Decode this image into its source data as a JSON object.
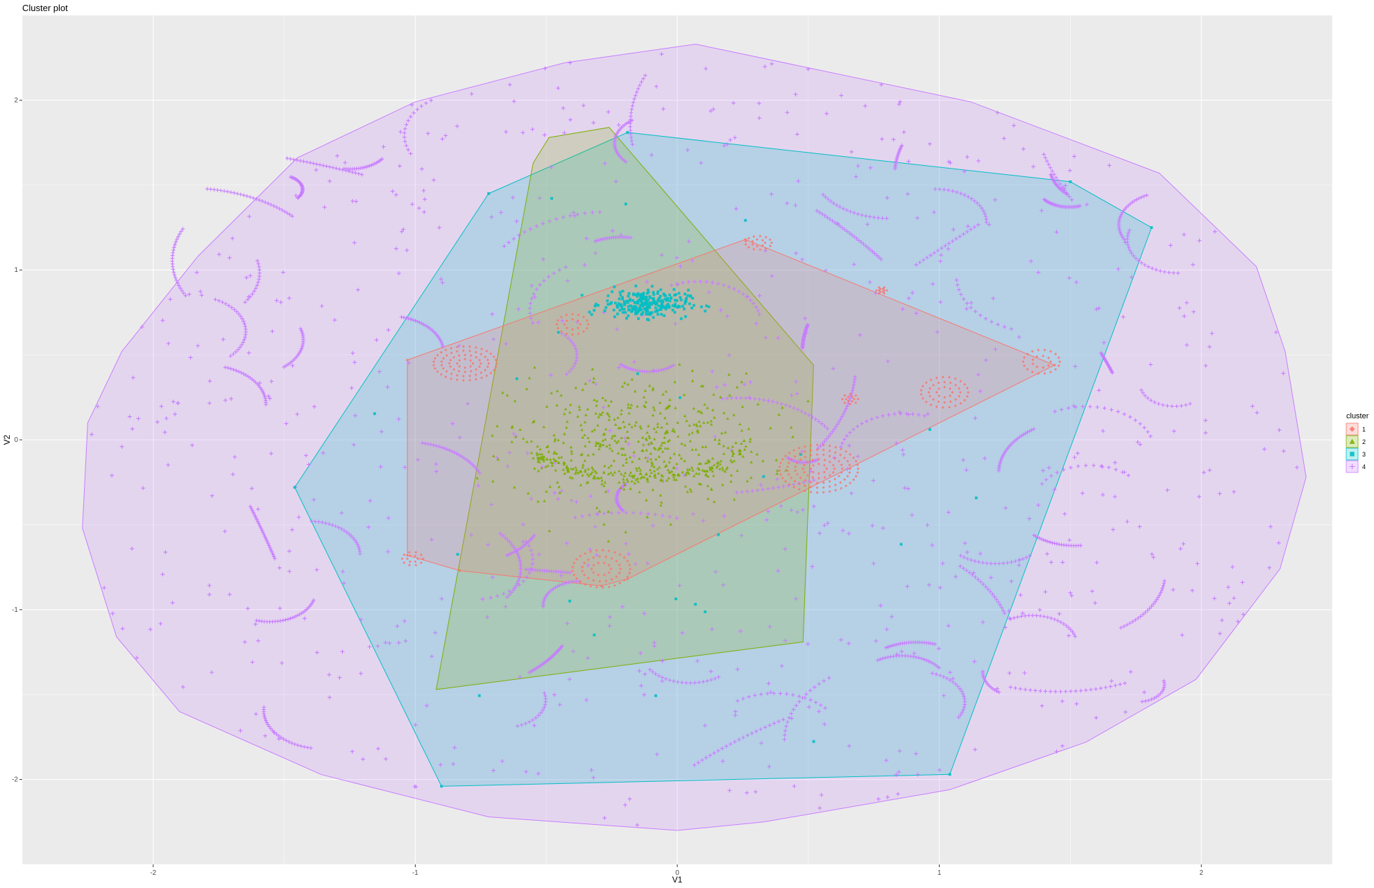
{
  "chart_data": {
    "type": "scatter",
    "title": "Cluster plot",
    "xlabel": "V1",
    "ylabel": "V2",
    "xlim": [
      -2.5,
      2.5
    ],
    "ylim": [
      -2.5,
      2.5
    ],
    "x_ticks": [
      -2,
      -1,
      0,
      1,
      2
    ],
    "y_ticks": [
      -2,
      -1,
      0,
      1,
      2
    ],
    "x_tick_labels": [
      "-2",
      "-1",
      "0",
      "1",
      "2"
    ],
    "y_tick_labels": [
      "-2",
      "-1",
      "0",
      "1",
      "2"
    ],
    "grid": true,
    "legend": {
      "title": "cluster",
      "placement": "right",
      "entries": [
        "1",
        "2",
        "3",
        "4"
      ]
    },
    "clusters": [
      {
        "name": "1",
        "color": "#F8766D",
        "marker": "diamond",
        "hull": [
          [
            -1.03,
            0.47
          ],
          [
            0.26,
            1.18
          ],
          [
            1.44,
            0.44
          ],
          [
            -0.19,
            -0.82
          ],
          [
            -0.29,
            -0.86
          ],
          [
            -0.83,
            -0.77
          ],
          [
            -1.03,
            -0.68
          ]
        ],
        "blobs": [
          {
            "x": -0.81,
            "y": 0.45,
            "rx": 0.12,
            "ry": 0.1
          },
          {
            "x": -0.4,
            "y": 0.68,
            "rx": 0.06,
            "ry": 0.06
          },
          {
            "x": 0.54,
            "y": -0.17,
            "rx": 0.15,
            "ry": 0.14
          },
          {
            "x": 1.02,
            "y": 0.28,
            "rx": 0.09,
            "ry": 0.09
          },
          {
            "x": -0.29,
            "y": -0.76,
            "rx": 0.11,
            "ry": 0.11
          },
          {
            "x": 1.39,
            "y": 0.46,
            "rx": 0.07,
            "ry": 0.07
          },
          {
            "x": 0.31,
            "y": 1.16,
            "rx": 0.05,
            "ry": 0.04
          },
          {
            "x": -1.01,
            "y": -0.7,
            "rx": 0.04,
            "ry": 0.04
          },
          {
            "x": 0.66,
            "y": 0.24,
            "rx": 0.03,
            "ry": 0.03
          },
          {
            "x": 0.78,
            "y": 0.88,
            "rx": 0.02,
            "ry": 0.02
          }
        ]
      },
      {
        "name": "2",
        "color": "#7CAE00",
        "marker": "triangle",
        "hull": [
          [
            -0.49,
            1.78
          ],
          [
            -0.26,
            1.84
          ],
          [
            0.52,
            0.44
          ],
          [
            0.48,
            -1.19
          ],
          [
            -0.92,
            -1.47
          ],
          [
            -0.55,
            1.63
          ]
        ],
        "center": [
          -0.15,
          0.0
        ],
        "spread": [
          0.45,
          0.38
        ]
      },
      {
        "name": "3",
        "color": "#00BFC4",
        "marker": "square",
        "hull": [
          [
            -0.72,
            1.45
          ],
          [
            -0.19,
            1.81
          ],
          [
            1.5,
            1.52
          ],
          [
            1.81,
            1.25
          ],
          [
            1.04,
            -1.97
          ],
          [
            -0.9,
            -2.04
          ],
          [
            -1.46,
            -0.28
          ]
        ],
        "blob": {
          "x": -0.12,
          "y": 0.8,
          "rx": 0.18,
          "ry": 0.09
        }
      },
      {
        "name": "4",
        "color": "#C77CFF",
        "marker": "cross",
        "hull": [
          [
            0.07,
            2.33
          ],
          [
            1.12,
            1.99
          ],
          [
            1.84,
            1.57
          ],
          [
            2.21,
            1.02
          ],
          [
            2.32,
            0.52
          ],
          [
            2.4,
            -0.22
          ],
          [
            2.3,
            -0.76
          ],
          [
            1.98,
            -1.41
          ],
          [
            1.56,
            -1.78
          ],
          [
            1.04,
            -2.06
          ],
          [
            0.33,
            -2.25
          ],
          [
            0.0,
            -2.3
          ],
          [
            -0.72,
            -2.22
          ],
          [
            -1.36,
            -1.97
          ],
          [
            -1.9,
            -1.6
          ],
          [
            -2.14,
            -1.16
          ],
          [
            -2.27,
            -0.52
          ],
          [
            -2.25,
            0.1
          ],
          [
            -2.12,
            0.52
          ],
          [
            -1.83,
            1.08
          ],
          [
            -1.45,
            1.66
          ],
          [
            -1.0,
            1.99
          ],
          [
            -0.43,
            2.22
          ]
        ]
      }
    ]
  }
}
